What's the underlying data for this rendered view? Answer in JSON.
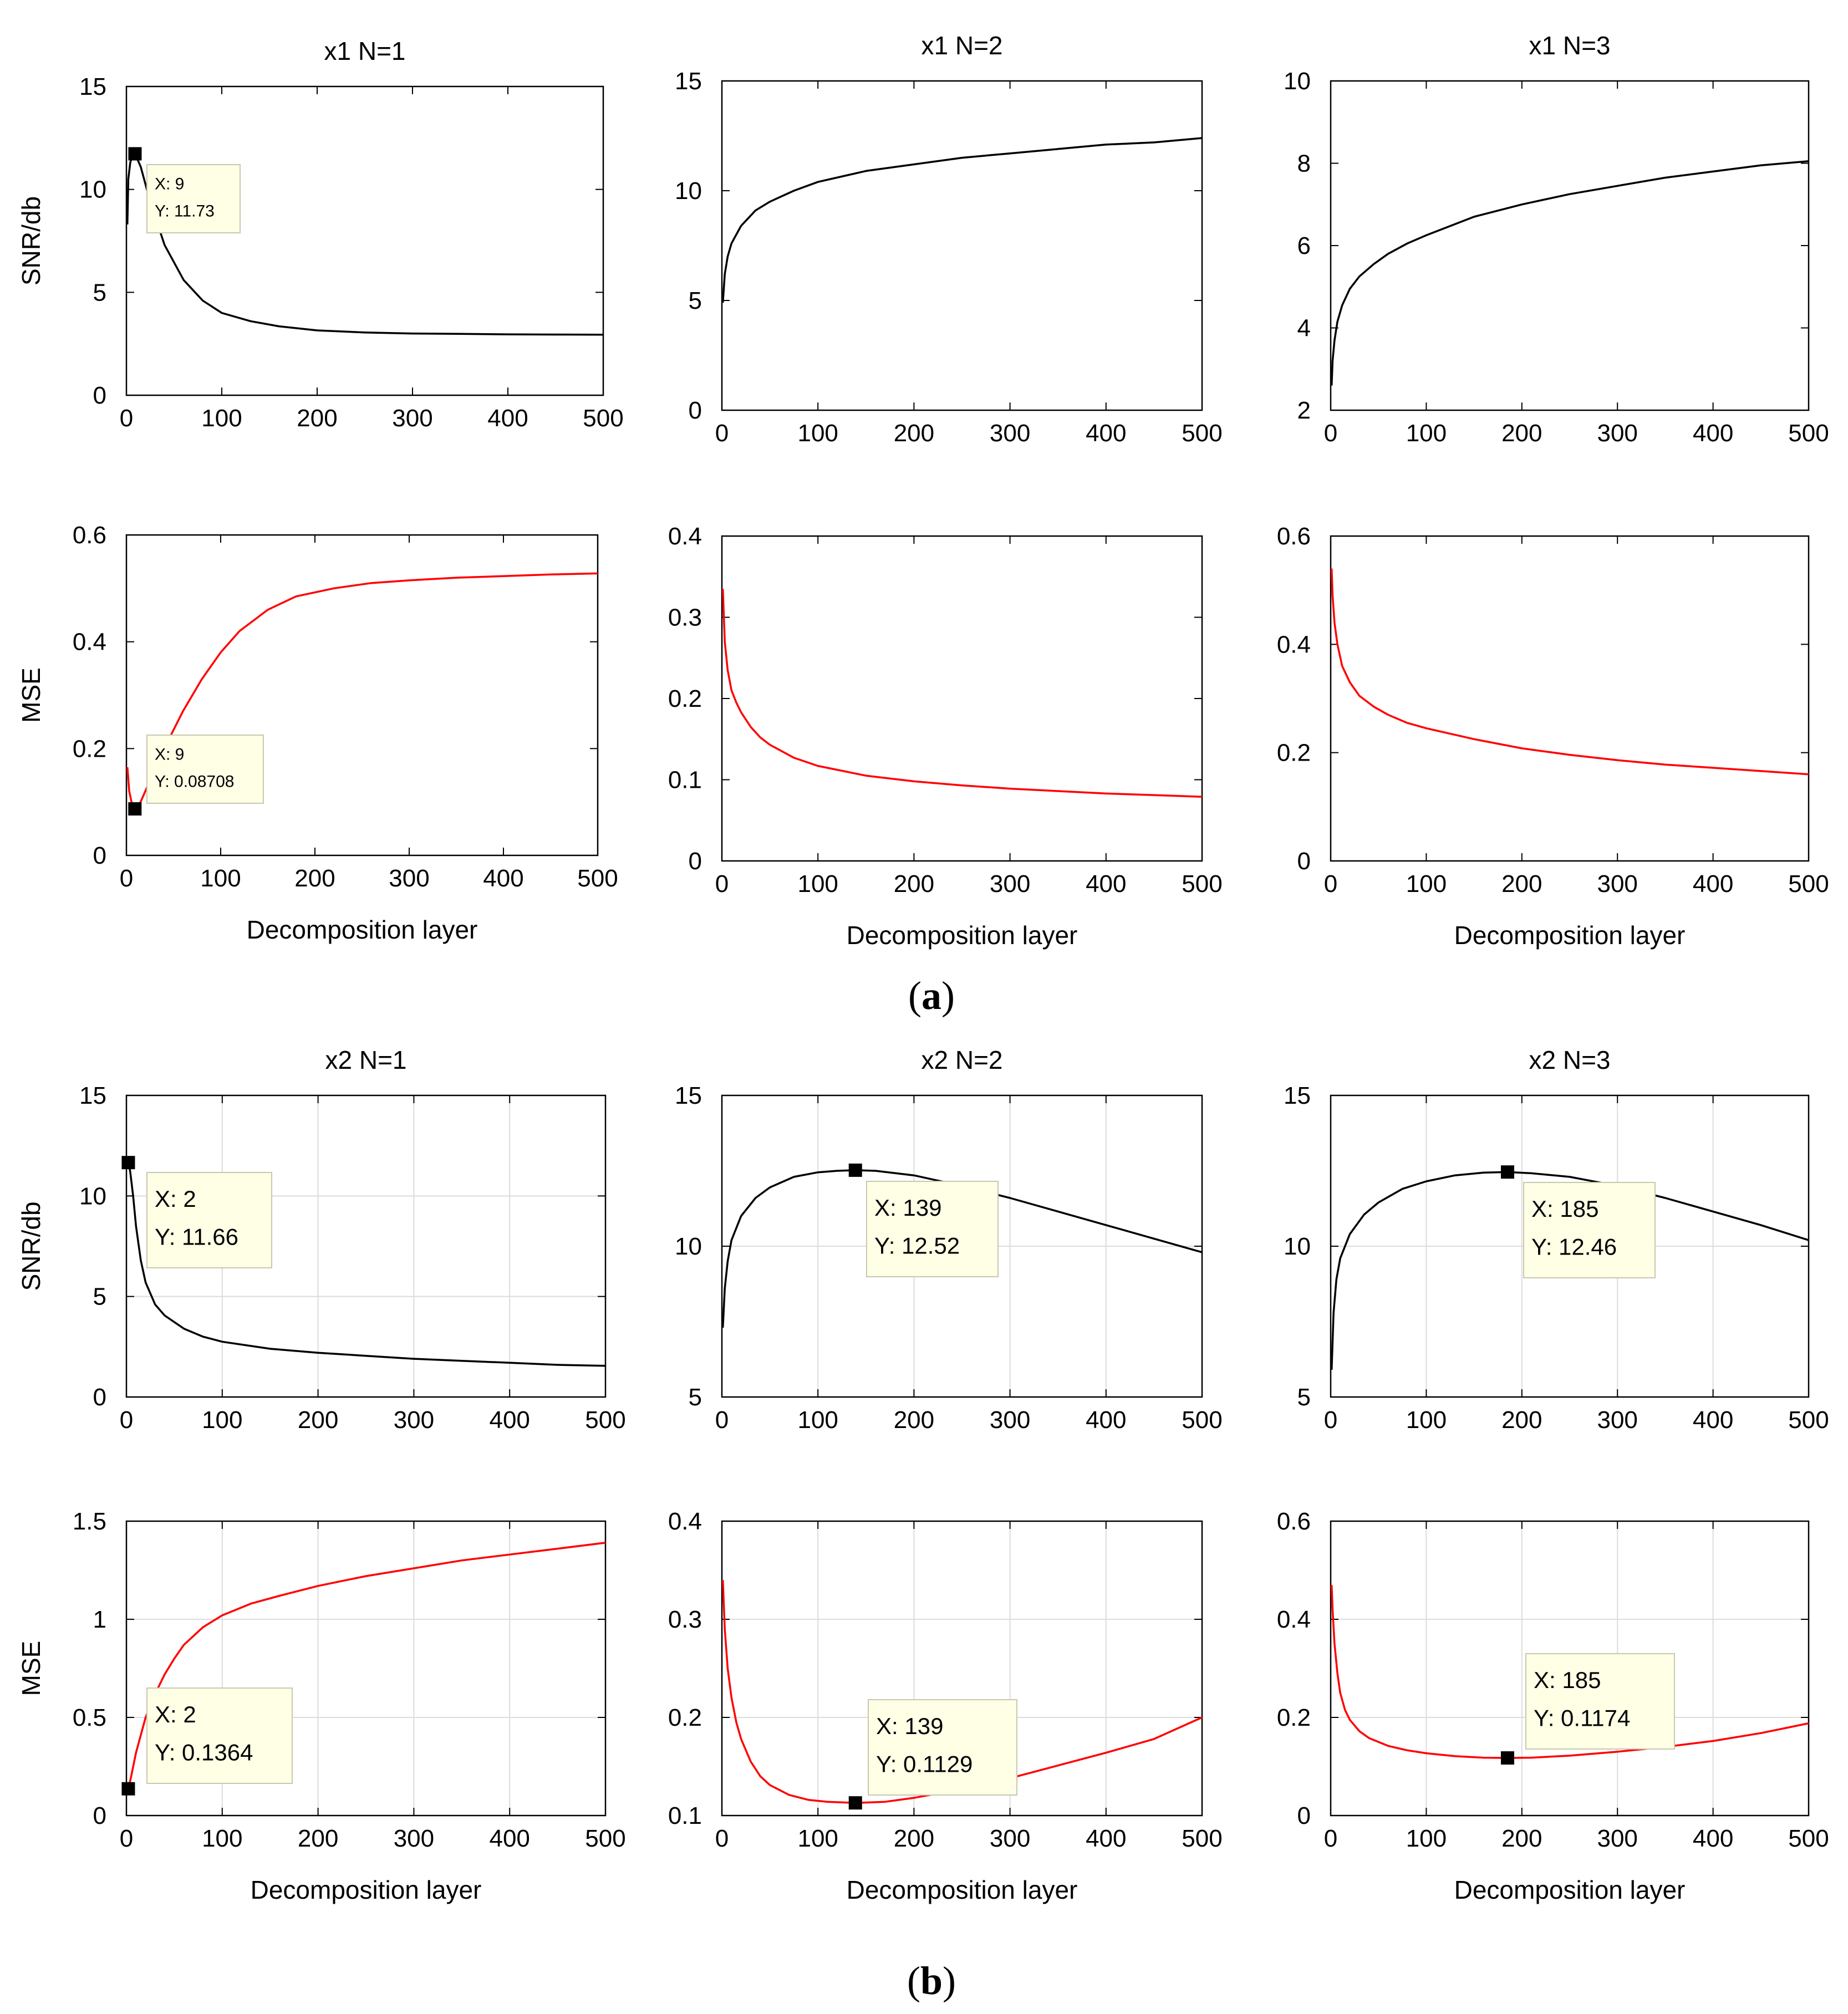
{
  "figure": {
    "panels": [
      {
        "label_open": "(",
        "label_letter": "a",
        "label_close": ")"
      },
      {
        "label_open": "(",
        "label_letter": "b",
        "label_close": ")"
      }
    ]
  },
  "chart_data": [
    {
      "type": "line",
      "title": "x1  N=1",
      "xlabel": "",
      "ylabel": "SNR/db",
      "color": "#000000",
      "grid": false,
      "xlim": [
        0,
        500
      ],
      "xticks": [
        "0",
        "100",
        "200",
        "300",
        "400",
        "500"
      ],
      "ylim": [
        0,
        15
      ],
      "yticks": [
        "0",
        "5",
        "10",
        "15"
      ],
      "x": [
        1,
        2,
        4,
        6,
        9,
        15,
        25,
        40,
        60,
        80,
        100,
        130,
        160,
        200,
        250,
        300,
        350,
        400,
        450,
        500
      ],
      "y": [
        8.3,
        10.5,
        11.3,
        11.6,
        11.73,
        11.1,
        9.4,
        7.3,
        5.6,
        4.6,
        4.0,
        3.6,
        3.35,
        3.15,
        3.05,
        3.0,
        2.98,
        2.96,
        2.95,
        2.94
      ],
      "annotation": {
        "x": 9,
        "y": 11.73,
        "text_x": "X: 9",
        "text_y": "Y: 11.73"
      }
    },
    {
      "type": "line",
      "title": "x1  N=2",
      "xlabel": "",
      "ylabel": "",
      "color": "#000000",
      "grid": false,
      "xlim": [
        0,
        500
      ],
      "xticks": [
        "0",
        "100",
        "200",
        "300",
        "400",
        "500"
      ],
      "ylim": [
        0,
        15
      ],
      "yticks": [
        "0",
        "5",
        "10",
        "15"
      ],
      "x": [
        1,
        3,
        6,
        10,
        20,
        35,
        50,
        75,
        100,
        150,
        200,
        250,
        300,
        350,
        400,
        450,
        500
      ],
      "y": [
        4.9,
        6.2,
        7.0,
        7.6,
        8.4,
        9.1,
        9.5,
        10.0,
        10.4,
        10.9,
        11.2,
        11.5,
        11.7,
        11.9,
        12.1,
        12.2,
        12.4
      ],
      "annotation": null
    },
    {
      "type": "line",
      "title": "x1  N=3",
      "xlabel": "",
      "ylabel": "",
      "color": "#000000",
      "grid": false,
      "xlim": [
        0,
        500
      ],
      "xticks": [
        "0",
        "100",
        "200",
        "300",
        "400",
        "500"
      ],
      "ylim": [
        2,
        10
      ],
      "yticks": [
        "2",
        "4",
        "6",
        "8",
        "10"
      ],
      "x": [
        1,
        2,
        4,
        7,
        12,
        20,
        30,
        45,
        60,
        80,
        100,
        150,
        200,
        250,
        300,
        350,
        400,
        450,
        500
      ],
      "y": [
        2.6,
        3.2,
        3.7,
        4.15,
        4.55,
        4.95,
        5.25,
        5.55,
        5.8,
        6.05,
        6.25,
        6.7,
        7.0,
        7.25,
        7.45,
        7.65,
        7.8,
        7.95,
        8.05
      ],
      "annotation": null
    },
    {
      "type": "line",
      "title": "",
      "xlabel": "Decomposition layer",
      "ylabel": "MSE",
      "color": "#ff0000",
      "grid": false,
      "xlim": [
        0,
        500
      ],
      "xticks": [
        "0",
        "100",
        "200",
        "300",
        "400",
        "500"
      ],
      "ylim": [
        0,
        0.6
      ],
      "yticks": [
        "0",
        "0.2",
        "0.4",
        "0.6"
      ],
      "x": [
        1,
        3,
        6,
        9,
        15,
        25,
        40,
        60,
        80,
        100,
        120,
        150,
        180,
        220,
        260,
        300,
        350,
        400,
        450,
        500
      ],
      "y": [
        0.165,
        0.12,
        0.095,
        0.08708,
        0.1,
        0.14,
        0.2,
        0.27,
        0.33,
        0.38,
        0.42,
        0.46,
        0.485,
        0.5,
        0.51,
        0.515,
        0.52,
        0.523,
        0.526,
        0.528
      ],
      "annotation": {
        "x": 9,
        "y": 0.08708,
        "text_x": "X: 9",
        "text_y": "Y: 0.08708"
      }
    },
    {
      "type": "line",
      "title": "",
      "xlabel": "Decomposition layer",
      "ylabel": "",
      "color": "#ff0000",
      "grid": false,
      "xlim": [
        0,
        500
      ],
      "xticks": [
        "0",
        "100",
        "200",
        "300",
        "400",
        "500"
      ],
      "ylim": [
        0,
        0.4
      ],
      "yticks": [
        "0",
        "0.1",
        "0.2",
        "0.3",
        "0.4"
      ],
      "x": [
        1,
        3,
        6,
        10,
        15,
        20,
        30,
        40,
        50,
        75,
        100,
        150,
        200,
        250,
        300,
        350,
        400,
        450,
        500
      ],
      "y": [
        0.335,
        0.27,
        0.235,
        0.21,
        0.195,
        0.183,
        0.165,
        0.152,
        0.143,
        0.127,
        0.117,
        0.105,
        0.098,
        0.093,
        0.089,
        0.086,
        0.083,
        0.081,
        0.079
      ],
      "annotation": null
    },
    {
      "type": "line",
      "title": "",
      "xlabel": "Decomposition layer",
      "ylabel": "",
      "color": "#ff0000",
      "grid": false,
      "xlim": [
        0,
        500
      ],
      "xticks": [
        "0",
        "100",
        "200",
        "300",
        "400",
        "500"
      ],
      "ylim": [
        0,
        0.6
      ],
      "yticks": [
        "0",
        "0.2",
        "0.4",
        "0.6"
      ],
      "x": [
        1,
        2,
        4,
        7,
        12,
        20,
        30,
        45,
        60,
        80,
        100,
        150,
        200,
        250,
        300,
        350,
        400,
        450,
        500
      ],
      "y": [
        0.54,
        0.49,
        0.44,
        0.4,
        0.36,
        0.33,
        0.305,
        0.285,
        0.27,
        0.255,
        0.245,
        0.225,
        0.208,
        0.196,
        0.186,
        0.178,
        0.172,
        0.166,
        0.16
      ],
      "annotation": null
    },
    {
      "type": "line",
      "title": "x2  N=1",
      "xlabel": "",
      "ylabel": "SNR/db",
      "color": "#000000",
      "grid": true,
      "xlim": [
        0,
        500
      ],
      "xticks": [
        "0",
        "100",
        "200",
        "300",
        "400",
        "500"
      ],
      "ylim": [
        0,
        15
      ],
      "yticks": [
        "0",
        "5",
        "10",
        "15"
      ],
      "x": [
        1,
        2,
        4,
        7,
        10,
        15,
        20,
        30,
        40,
        60,
        80,
        100,
        150,
        200,
        250,
        300,
        350,
        400,
        450,
        500
      ],
      "y": [
        11.4,
        11.66,
        11.2,
        10.0,
        8.5,
        6.8,
        5.7,
        4.6,
        4.05,
        3.4,
        3.0,
        2.75,
        2.4,
        2.2,
        2.05,
        1.9,
        1.8,
        1.7,
        1.6,
        1.55
      ],
      "annotation": {
        "x": 2,
        "y": 11.66,
        "text_x": "X: 2",
        "text_y": "Y: 11.66"
      }
    },
    {
      "type": "line",
      "title": "x2  N=2",
      "xlabel": "",
      "ylabel": "",
      "color": "#000000",
      "grid": true,
      "xlim": [
        0,
        500
      ],
      "xticks": [
        "0",
        "100",
        "200",
        "300",
        "400",
        "500"
      ],
      "ylim": [
        5,
        15
      ],
      "yticks": [
        "5",
        "10",
        "15"
      ],
      "x": [
        1,
        3,
        6,
        10,
        20,
        35,
        50,
        75,
        100,
        120,
        139,
        160,
        200,
        250,
        300,
        350,
        400,
        450,
        500
      ],
      "y": [
        7.3,
        8.6,
        9.5,
        10.2,
        11.0,
        11.6,
        11.95,
        12.3,
        12.45,
        12.5,
        12.52,
        12.5,
        12.35,
        12.0,
        11.6,
        11.15,
        10.7,
        10.25,
        9.8
      ],
      "annotation": {
        "x": 139,
        "y": 12.52,
        "text_x": "X: 139",
        "text_y": "Y: 12.52"
      }
    },
    {
      "type": "line",
      "title": "x2  N=3",
      "xlabel": "",
      "ylabel": "",
      "color": "#000000",
      "grid": true,
      "xlim": [
        0,
        500
      ],
      "xticks": [
        "0",
        "100",
        "200",
        "300",
        "400",
        "500"
      ],
      "ylim": [
        5,
        15
      ],
      "yticks": [
        "5",
        "10",
        "15"
      ],
      "x": [
        1,
        3,
        6,
        10,
        20,
        35,
        50,
        75,
        100,
        130,
        160,
        185,
        210,
        250,
        300,
        350,
        400,
        450,
        500
      ],
      "y": [
        5.9,
        7.8,
        8.9,
        9.6,
        10.4,
        11.05,
        11.45,
        11.9,
        12.15,
        12.35,
        12.44,
        12.46,
        12.42,
        12.3,
        12.0,
        11.6,
        11.15,
        10.7,
        10.2
      ],
      "annotation": {
        "x": 185,
        "y": 12.46,
        "text_x": "X: 185",
        "text_y": "Y: 12.46"
      }
    },
    {
      "type": "line",
      "title": "",
      "xlabel": "Decomposition layer",
      "ylabel": "MSE",
      "color": "#ff0000",
      "grid": true,
      "xlim": [
        0,
        500
      ],
      "xticks": [
        "0",
        "100",
        "200",
        "300",
        "400",
        "500"
      ],
      "ylim": [
        0,
        1.5
      ],
      "yticks": [
        "0",
        "0.5",
        "1",
        "1.5"
      ],
      "x": [
        1,
        2,
        5,
        10,
        20,
        30,
        40,
        50,
        60,
        80,
        100,
        130,
        160,
        200,
        250,
        300,
        350,
        400,
        450,
        500
      ],
      "y": [
        0.13,
        0.1364,
        0.2,
        0.32,
        0.5,
        0.62,
        0.72,
        0.8,
        0.87,
        0.96,
        1.02,
        1.08,
        1.12,
        1.17,
        1.22,
        1.26,
        1.3,
        1.33,
        1.36,
        1.39
      ],
      "annotation": {
        "x": 2,
        "y": 0.1364,
        "text_x": "X: 2",
        "text_y": "Y: 0.1364"
      }
    },
    {
      "type": "line",
      "title": "",
      "xlabel": "Decomposition layer",
      "ylabel": "",
      "color": "#ff0000",
      "grid": true,
      "xlim": [
        0,
        500
      ],
      "xticks": [
        "0",
        "100",
        "200",
        "300",
        "400",
        "500"
      ],
      "ylim": [
        0.1,
        0.4
      ],
      "yticks": [
        "0.1",
        "0.2",
        "0.3",
        "0.4"
      ],
      "x": [
        1,
        3,
        6,
        10,
        15,
        20,
        30,
        40,
        50,
        70,
        90,
        110,
        139,
        170,
        200,
        250,
        300,
        350,
        400,
        450,
        500
      ],
      "y": [
        0.34,
        0.29,
        0.25,
        0.22,
        0.195,
        0.178,
        0.155,
        0.14,
        0.131,
        0.121,
        0.116,
        0.114,
        0.1129,
        0.114,
        0.118,
        0.127,
        0.138,
        0.151,
        0.164,
        0.178,
        0.2
      ],
      "annotation": {
        "x": 139,
        "y": 0.1129,
        "text_x": "X: 139",
        "text_y": "Y: 0.1129"
      }
    },
    {
      "type": "line",
      "title": "",
      "xlabel": "Decomposition layer",
      "ylabel": "",
      "color": "#ff0000",
      "grid": true,
      "xlim": [
        0,
        500
      ],
      "xticks": [
        "0",
        "100",
        "200",
        "300",
        "400",
        "500"
      ],
      "ylim": [
        0,
        0.6
      ],
      "yticks": [
        "0",
        "0.2",
        "0.4",
        "0.6"
      ],
      "x": [
        1,
        2,
        4,
        7,
        10,
        15,
        20,
        30,
        40,
        60,
        80,
        100,
        130,
        160,
        185,
        210,
        250,
        300,
        350,
        400,
        450,
        500
      ],
      "y": [
        0.47,
        0.42,
        0.35,
        0.29,
        0.25,
        0.215,
        0.195,
        0.172,
        0.158,
        0.142,
        0.133,
        0.127,
        0.121,
        0.118,
        0.1174,
        0.118,
        0.122,
        0.13,
        0.14,
        0.152,
        0.168,
        0.188
      ],
      "annotation": {
        "x": 185,
        "y": 0.1174,
        "text_x": "X: 185",
        "text_y": "Y: 0.1174"
      }
    }
  ]
}
